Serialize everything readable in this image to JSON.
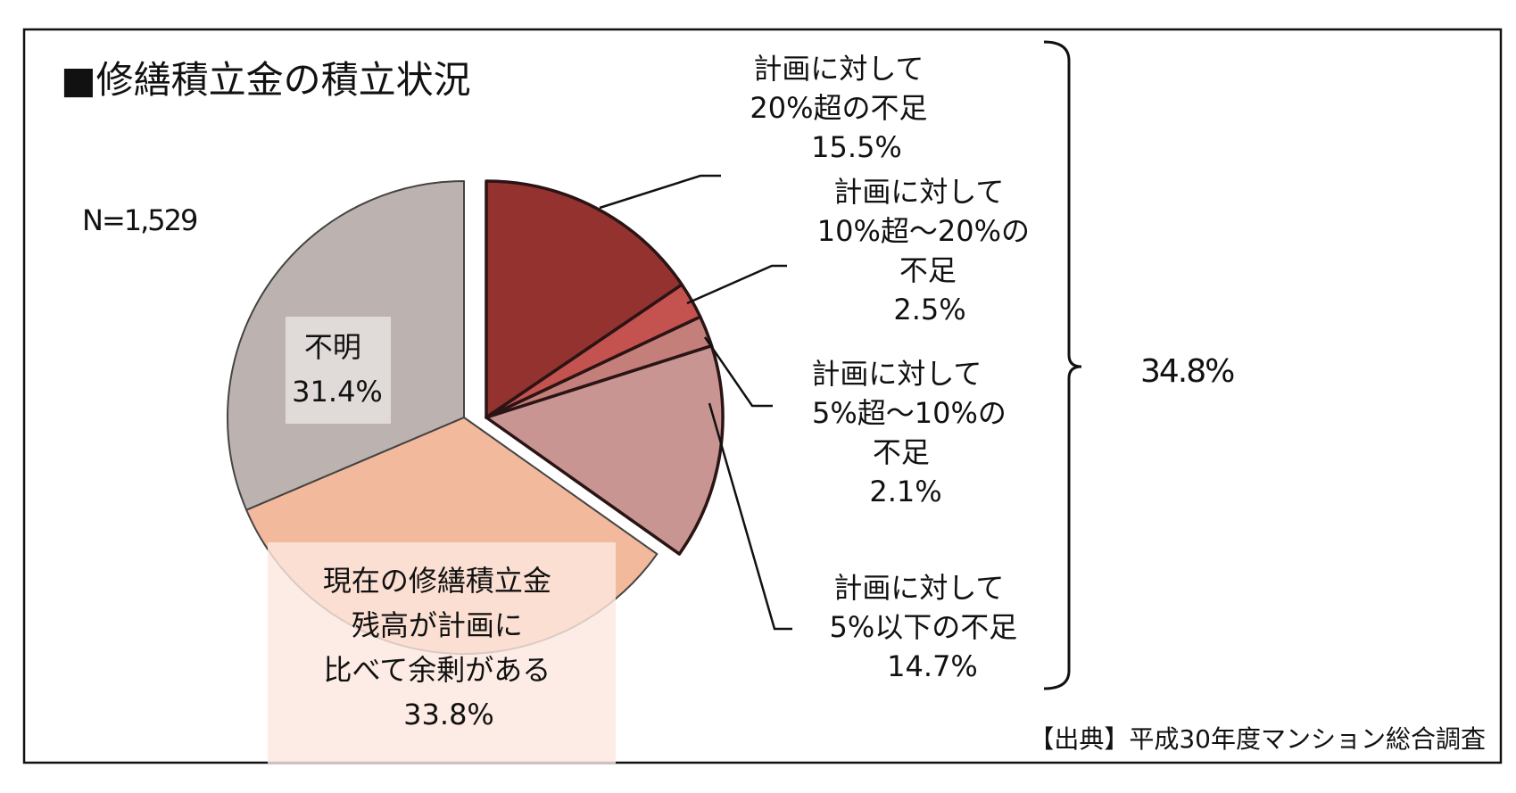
{
  "chart_data": {
    "type": "pie",
    "title": "■修繕積立金の積立状況",
    "sample_size": "N=1,529",
    "source": "【出典】平成30年度マンション総合調査",
    "slices": [
      {
        "label_lines": [
          "計画に対して",
          "20%超の不足"
        ],
        "value": 15.5,
        "value_label": "15.5%",
        "color": "#943230",
        "exploded": true
      },
      {
        "label_lines": [
          "計画に対して",
          "10%超～20%の",
          "不足"
        ],
        "value": 2.5,
        "value_label": "2.5%",
        "color": "#c4524f",
        "exploded": true
      },
      {
        "label_lines": [
          "計画に対して",
          "5%超～10%の",
          "不足"
        ],
        "value": 2.1,
        "value_label": "2.1%",
        "color": "#c47f7b",
        "exploded": true
      },
      {
        "label_lines": [
          "計画に対して",
          "5%以下の不足"
        ],
        "value": 14.7,
        "value_label": "14.7%",
        "color": "#c89593",
        "exploded": true
      },
      {
        "label_lines": [
          "現在の修繕積立金",
          "残高が計画に",
          "比べて余剰がある"
        ],
        "value": 33.8,
        "value_label": "33.8%",
        "color": "#f2b99c",
        "exploded": false
      },
      {
        "label_lines": [
          "不明"
        ],
        "value": 31.4,
        "value_label": "31.4%",
        "color": "#bcb3b0",
        "exploded": false
      }
    ],
    "bracket_total": "34.8%"
  }
}
